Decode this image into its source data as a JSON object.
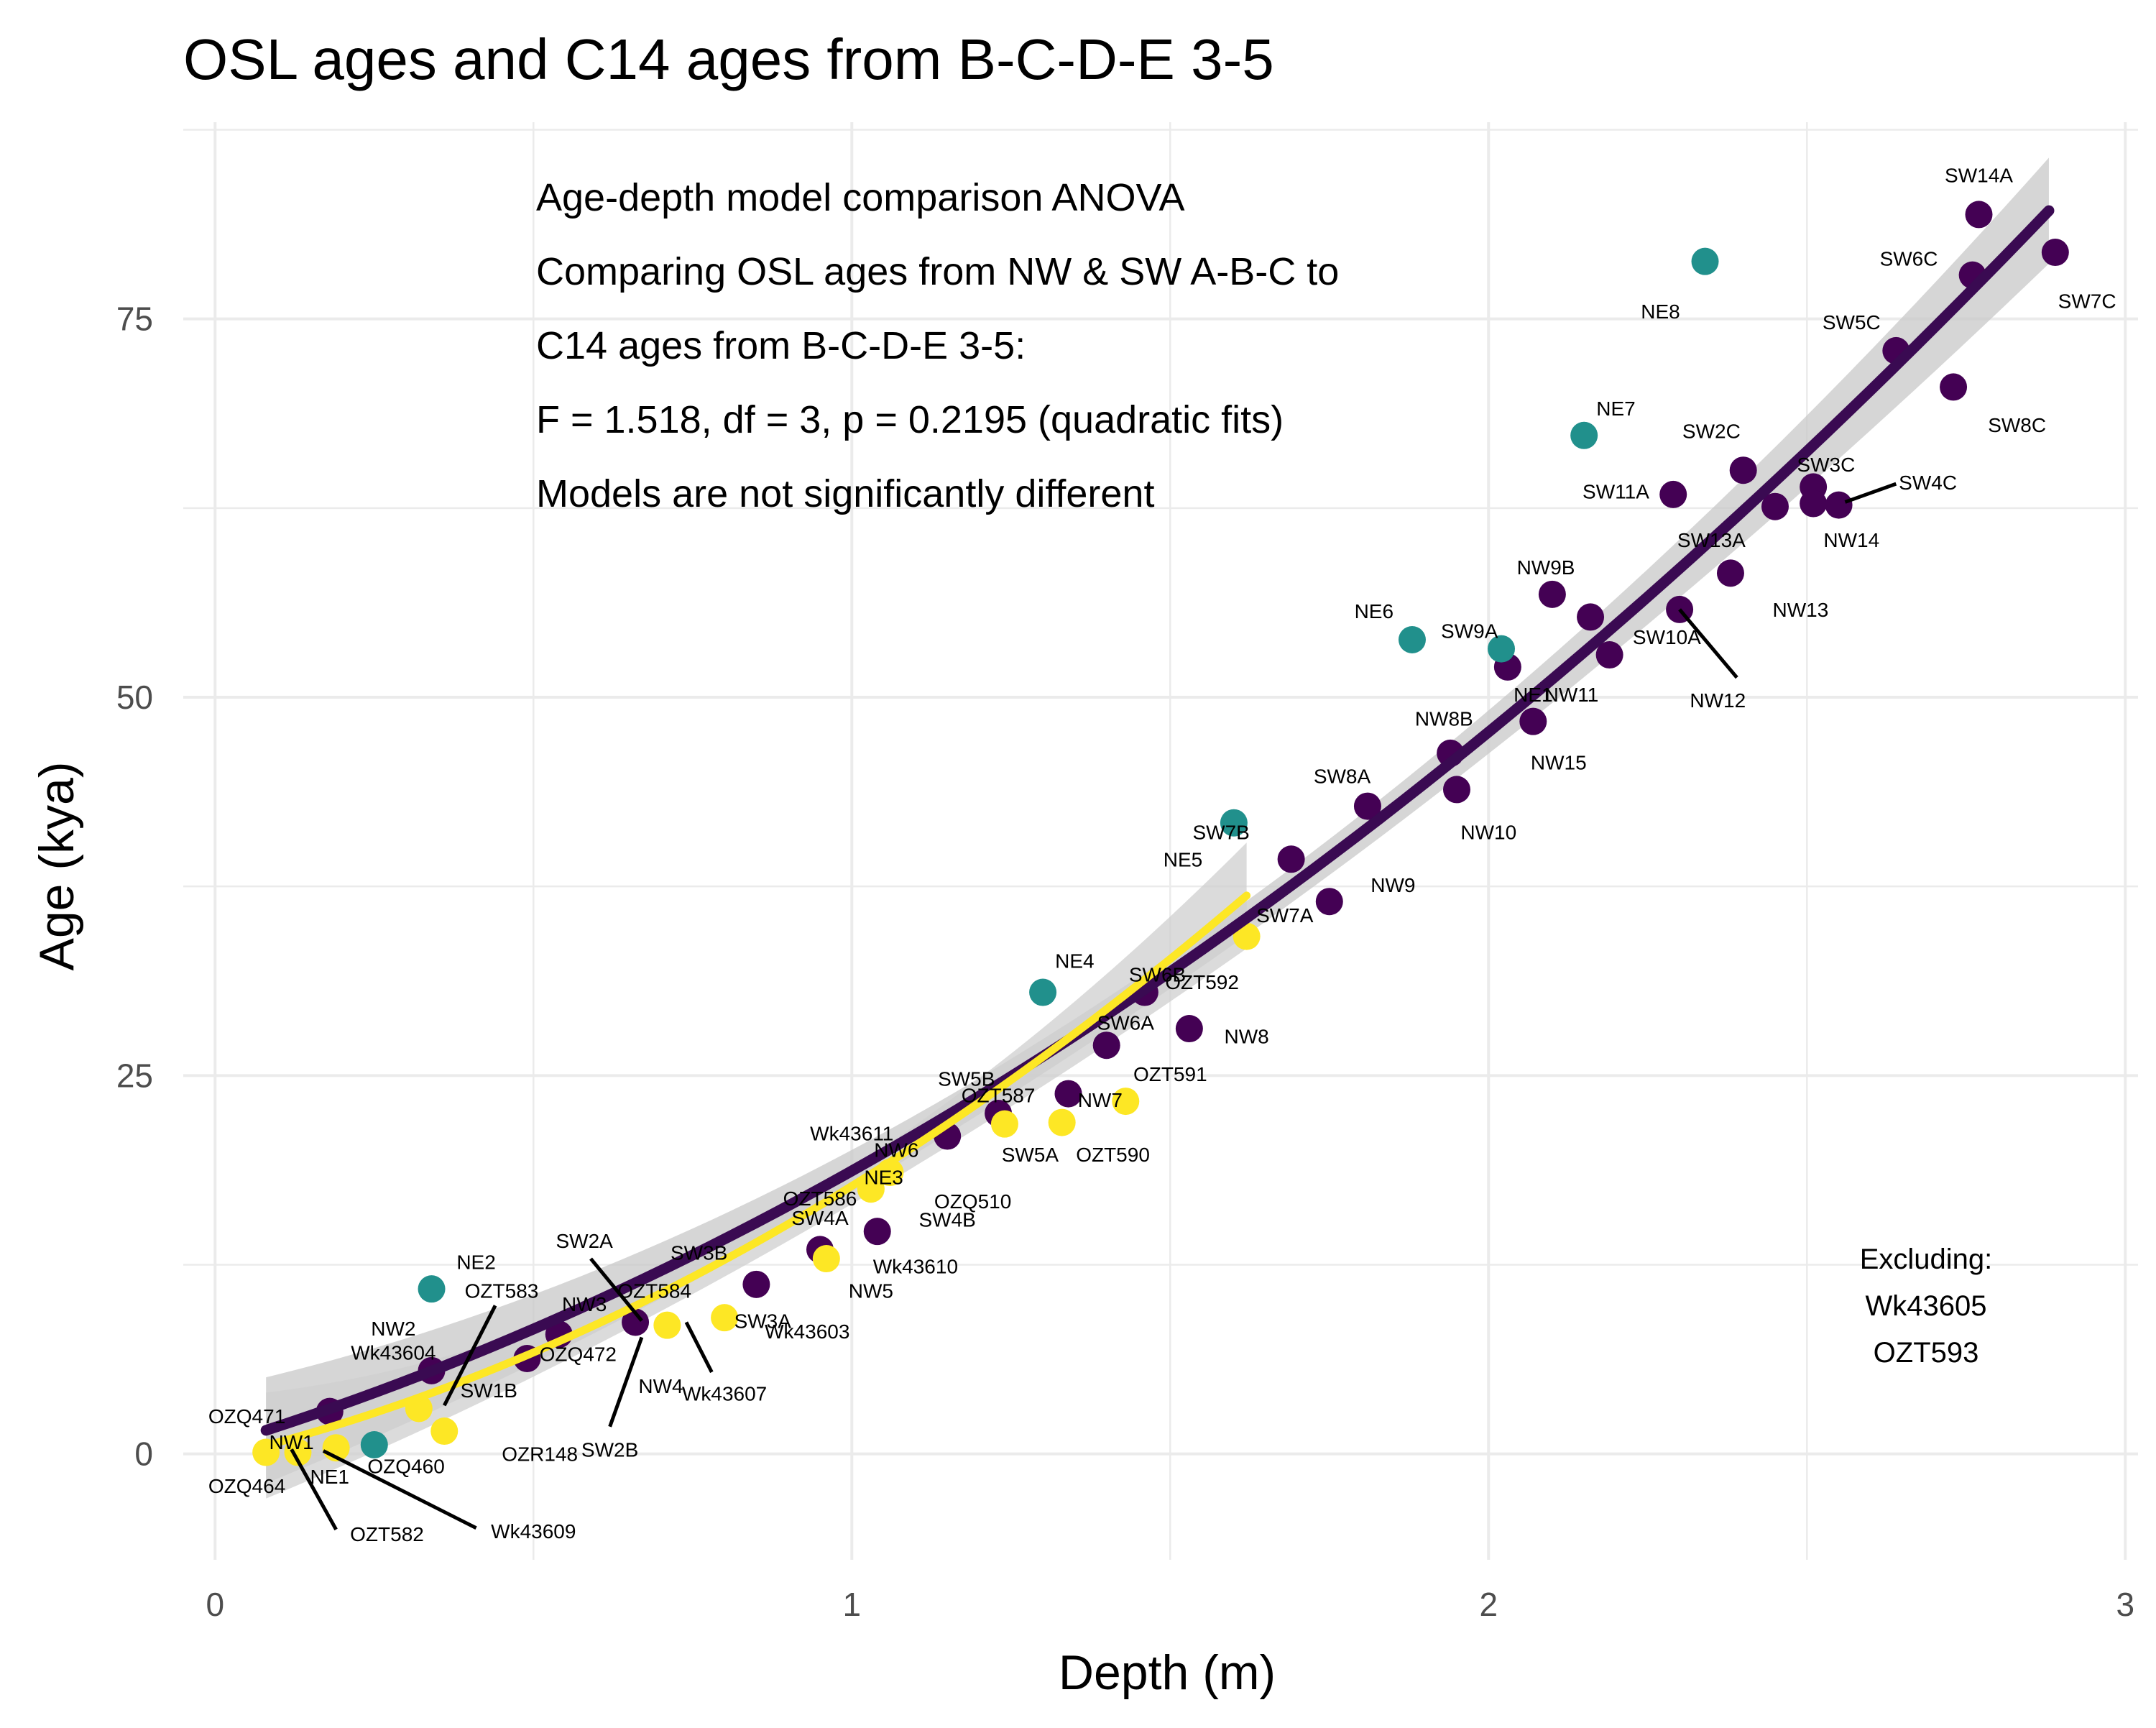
{
  "chart_data": {
    "type": "scatter",
    "title": "OSL ages and C14 ages from B-C-D-E 3-5",
    "xlabel": "Depth (m)",
    "ylabel": "Age (kya)",
    "xlim": [
      -0.05,
      3.02
    ],
    "ylim": [
      -7,
      88
    ],
    "x_ticks": [
      {
        "v": 0,
        "label": "0"
      },
      {
        "v": 1,
        "label": "1"
      },
      {
        "v": 2,
        "label": "2"
      },
      {
        "v": 3,
        "label": "3"
      }
    ],
    "y_ticks": [
      {
        "v": 0,
        "label": "0"
      },
      {
        "v": 25,
        "label": "25"
      },
      {
        "v": 50,
        "label": "50"
      },
      {
        "v": 75,
        "label": "75"
      }
    ],
    "grid": true,
    "legend": "none",
    "annotation_lines": [
      "Age-depth model comparison ANOVA",
      "Comparing OSL ages from NW & SW A-B-C to",
      "C14 ages from B-C-D-E 3-5:",
      "F = 1.518, df = 3, p = 0.2195 (quadratic fits)",
      "Models are not significantly different"
    ],
    "excluding_lines": [
      "Excluding:",
      "Wk43605",
      "OZT593"
    ],
    "colors": {
      "osl_fit": "#440154",
      "c14_fit": "#fde725",
      "band": "#bdbdbd",
      "grid": "#ebebeb"
    },
    "fits": [
      {
        "a": 0.5,
        "b": 12.8,
        "c": 5.4,
        "x_range": [
          0.08,
          2.88
        ],
        "color": "#3a0a52",
        "band": "#c8c8c8"
      },
      {
        "a": -0.3,
        "b": 10.0,
        "c": 8.0,
        "x_range": [
          0.08,
          1.62
        ],
        "color": "#fde725",
        "band": "#cfcfcf"
      }
    ],
    "series": [
      {
        "color": "#440154",
        "points": [
          {
            "x": 0.18,
            "y": 2.8
          },
          {
            "x": 0.34,
            "y": 5.5
          },
          {
            "x": 0.54,
            "y": 7.9
          },
          {
            "x": 0.49,
            "y": 6.3
          },
          {
            "x": 0.66,
            "y": 8.7
          },
          {
            "x": 0.85,
            "y": 11.2
          },
          {
            "x": 0.95,
            "y": 13.5
          },
          {
            "x": 1.04,
            "y": 14.7
          },
          {
            "x": 1.15,
            "y": 21.0
          },
          {
            "x": 1.23,
            "y": 22.5
          },
          {
            "x": 1.34,
            "y": 23.8
          },
          {
            "x": 1.4,
            "y": 27.0
          },
          {
            "x": 1.46,
            "y": 30.5
          },
          {
            "x": 1.53,
            "y": 28.1
          },
          {
            "x": 1.69,
            "y": 39.3
          },
          {
            "x": 1.75,
            "y": 36.5
          },
          {
            "x": 1.81,
            "y": 42.8
          },
          {
            "x": 1.94,
            "y": 46.3
          },
          {
            "x": 1.95,
            "y": 43.9
          },
          {
            "x": 2.03,
            "y": 52.0
          },
          {
            "x": 2.07,
            "y": 48.4
          },
          {
            "x": 2.1,
            "y": 56.8
          },
          {
            "x": 2.16,
            "y": 55.3
          },
          {
            "x": 2.19,
            "y": 52.8
          },
          {
            "x": 2.29,
            "y": 63.4
          },
          {
            "x": 2.3,
            "y": 55.8
          },
          {
            "x": 2.38,
            "y": 58.2
          },
          {
            "x": 2.4,
            "y": 65.0
          },
          {
            "x": 2.45,
            "y": 62.6
          },
          {
            "x": 2.51,
            "y": 63.9
          },
          {
            "x": 2.51,
            "y": 62.8
          },
          {
            "x": 2.55,
            "y": 62.7
          },
          {
            "x": 2.64,
            "y": 72.9
          },
          {
            "x": 2.73,
            "y": 70.5
          },
          {
            "x": 2.76,
            "y": 77.9
          },
          {
            "x": 2.77,
            "y": 81.9
          },
          {
            "x": 2.89,
            "y": 79.4
          }
        ]
      },
      {
        "color": "#21908c",
        "points": [
          {
            "x": 0.25,
            "y": 0.6
          },
          {
            "x": 0.34,
            "y": 10.9
          },
          {
            "x": 1.3,
            "y": 30.5
          },
          {
            "x": 1.6,
            "y": 41.7
          },
          {
            "x": 1.88,
            "y": 53.8
          },
          {
            "x": 2.02,
            "y": 53.2
          },
          {
            "x": 2.15,
            "y": 67.3
          },
          {
            "x": 2.34,
            "y": 78.8
          }
        ]
      },
      {
        "color": "#fde725",
        "points": [
          {
            "x": 0.08,
            "y": 0.1
          },
          {
            "x": 0.13,
            "y": 0.1
          },
          {
            "x": 0.19,
            "y": 0.4
          },
          {
            "x": 0.32,
            "y": 3.0
          },
          {
            "x": 0.36,
            "y": 1.5
          },
          {
            "x": 0.71,
            "y": 8.5
          },
          {
            "x": 0.8,
            "y": 9.0
          },
          {
            "x": 0.96,
            "y": 12.9
          },
          {
            "x": 1.03,
            "y": 17.5
          },
          {
            "x": 1.06,
            "y": 18.6
          },
          {
            "x": 1.24,
            "y": 21.8
          },
          {
            "x": 1.33,
            "y": 21.9
          },
          {
            "x": 1.43,
            "y": 23.3
          },
          {
            "x": 1.62,
            "y": 34.2
          }
        ]
      }
    ],
    "labels": [
      {
        "text": "SW14A",
        "x": 2.77,
        "y": 84.5
      },
      {
        "text": "SW6C",
        "x": 2.66,
        "y": 79.0
      },
      {
        "text": "SW7C",
        "x": 2.94,
        "y": 76.2
      },
      {
        "text": "NE8",
        "x": 2.27,
        "y": 75.5
      },
      {
        "text": "SW5C",
        "x": 2.57,
        "y": 74.8
      },
      {
        "text": "SW8C",
        "x": 2.83,
        "y": 68.0
      },
      {
        "text": "NE7",
        "x": 2.2,
        "y": 69.1
      },
      {
        "text": "SW2C",
        "x": 2.35,
        "y": 67.6
      },
      {
        "text": "SW3C",
        "x": 2.53,
        "y": 65.4
      },
      {
        "text": "SW11A",
        "x": 2.2,
        "y": 63.6
      },
      {
        "text": "SW4C",
        "x": 2.69,
        "y": 64.2
      },
      {
        "text": "SW13A",
        "x": 2.35,
        "y": 60.4
      },
      {
        "text": "NW14",
        "x": 2.57,
        "y": 60.4
      },
      {
        "text": "NW9B",
        "x": 2.09,
        "y": 58.6
      },
      {
        "text": "NW13",
        "x": 2.49,
        "y": 55.8
      },
      {
        "text": "NE6",
        "x": 1.82,
        "y": 55.7
      },
      {
        "text": "SW9A",
        "x": 1.97,
        "y": 54.4
      },
      {
        "text": "SW10A",
        "x": 2.28,
        "y": 54.0
      },
      {
        "text": "NE1",
        "x": 2.07,
        "y": 50.2
      },
      {
        "text": "NW11",
        "x": 2.13,
        "y": 50.2
      },
      {
        "text": "NW12",
        "x": 2.36,
        "y": 49.8
      },
      {
        "text": "NW8B",
        "x": 1.93,
        "y": 48.6
      },
      {
        "text": "NW15",
        "x": 2.11,
        "y": 45.7
      },
      {
        "text": "SW8A",
        "x": 1.77,
        "y": 44.8
      },
      {
        "text": "NW10",
        "x": 2.0,
        "y": 41.1
      },
      {
        "text": "SW7B",
        "x": 1.58,
        "y": 41.1
      },
      {
        "text": "NE5",
        "x": 1.52,
        "y": 39.3
      },
      {
        "text": "NW9",
        "x": 1.85,
        "y": 37.6
      },
      {
        "text": "SW7A",
        "x": 1.68,
        "y": 35.6
      },
      {
        "text": "NE4",
        "x": 1.35,
        "y": 32.6
      },
      {
        "text": "SW6B",
        "x": 1.48,
        "y": 31.7
      },
      {
        "text": "OZT592",
        "x": 1.55,
        "y": 31.2
      },
      {
        "text": "NW8",
        "x": 1.62,
        "y": 27.6
      },
      {
        "text": "SW6A",
        "x": 1.43,
        "y": 28.5
      },
      {
        "text": "OZT591",
        "x": 1.5,
        "y": 25.1
      },
      {
        "text": "SW5B",
        "x": 1.18,
        "y": 24.8
      },
      {
        "text": "OZT587",
        "x": 1.23,
        "y": 23.7
      },
      {
        "text": "NW7",
        "x": 1.39,
        "y": 23.4
      },
      {
        "text": "Wk43611",
        "x": 1.0,
        "y": 21.2
      },
      {
        "text": "NW6",
        "x": 1.07,
        "y": 20.1
      },
      {
        "text": "SW5A",
        "x": 1.28,
        "y": 19.8
      },
      {
        "text": "OZT590",
        "x": 1.41,
        "y": 19.8
      },
      {
        "text": "NE3",
        "x": 1.05,
        "y": 18.3
      },
      {
        "text": "OZT586",
        "x": 0.95,
        "y": 16.9
      },
      {
        "text": "OZQ510",
        "x": 1.19,
        "y": 16.7
      },
      {
        "text": "SW4A",
        "x": 0.95,
        "y": 15.6
      },
      {
        "text": "SW4B",
        "x": 1.15,
        "y": 15.5
      },
      {
        "text": "SW3B",
        "x": 0.76,
        "y": 13.3
      },
      {
        "text": "Wk43610",
        "x": 1.1,
        "y": 12.4
      },
      {
        "text": "NE2",
        "x": 0.41,
        "y": 12.7
      },
      {
        "text": "SW2A",
        "x": 0.58,
        "y": 14.1
      },
      {
        "text": "OZT583",
        "x": 0.45,
        "y": 10.8
      },
      {
        "text": "OZT584",
        "x": 0.69,
        "y": 10.8
      },
      {
        "text": "NW5",
        "x": 1.03,
        "y": 10.8
      },
      {
        "text": "NW3",
        "x": 0.58,
        "y": 9.9
      },
      {
        "text": "SW3A",
        "x": 0.86,
        "y": 8.8
      },
      {
        "text": "Wk43603",
        "x": 0.93,
        "y": 8.1
      },
      {
        "text": "NW2",
        "x": 0.28,
        "y": 8.3
      },
      {
        "text": "OZQ472",
        "x": 0.57,
        "y": 6.6
      },
      {
        "text": "Wk43604",
        "x": 0.28,
        "y": 6.7
      },
      {
        "text": "NW4",
        "x": 0.7,
        "y": 4.5
      },
      {
        "text": "Wk43607",
        "x": 0.8,
        "y": 4.0
      },
      {
        "text": "SW1B",
        "x": 0.43,
        "y": 4.2
      },
      {
        "text": "OZQ471",
        "x": 0.05,
        "y": 2.5
      },
      {
        "text": "NW1",
        "x": 0.12,
        "y": 0.8
      },
      {
        "text": "OZR148",
        "x": 0.51,
        "y": 0.0
      },
      {
        "text": "SW2B",
        "x": 0.62,
        "y": 0.3
      },
      {
        "text": "OZQ460",
        "x": 0.3,
        "y": -0.8
      },
      {
        "text": "NE1",
        "x": 0.18,
        "y": -1.5
      },
      {
        "text": "OZQ464",
        "x": 0.05,
        "y": -2.1
      },
      {
        "text": "Wk43609",
        "x": 0.5,
        "y": -5.1
      },
      {
        "text": "OZT582",
        "x": 0.27,
        "y": -5.3
      }
    ],
    "leader_lines": [
      {
        "x1": 2.56,
        "y1": 62.9,
        "x2": 2.64,
        "y2": 64.1
      },
      {
        "x1": 2.3,
        "y1": 55.8,
        "x2": 2.39,
        "y2": 51.3
      },
      {
        "x1": 0.59,
        "y1": 12.9,
        "x2": 0.67,
        "y2": 8.8
      },
      {
        "x1": 0.44,
        "y1": 9.8,
        "x2": 0.36,
        "y2": 3.2
      },
      {
        "x1": 0.67,
        "y1": 7.7,
        "x2": 0.62,
        "y2": 1.8
      },
      {
        "x1": 0.74,
        "y1": 8.7,
        "x2": 0.78,
        "y2": 5.4
      },
      {
        "x1": 0.12,
        "y1": 0.3,
        "x2": 0.19,
        "y2": -5.0
      },
      {
        "x1": 0.17,
        "y1": 0.2,
        "x2": 0.41,
        "y2": -4.9
      }
    ]
  }
}
